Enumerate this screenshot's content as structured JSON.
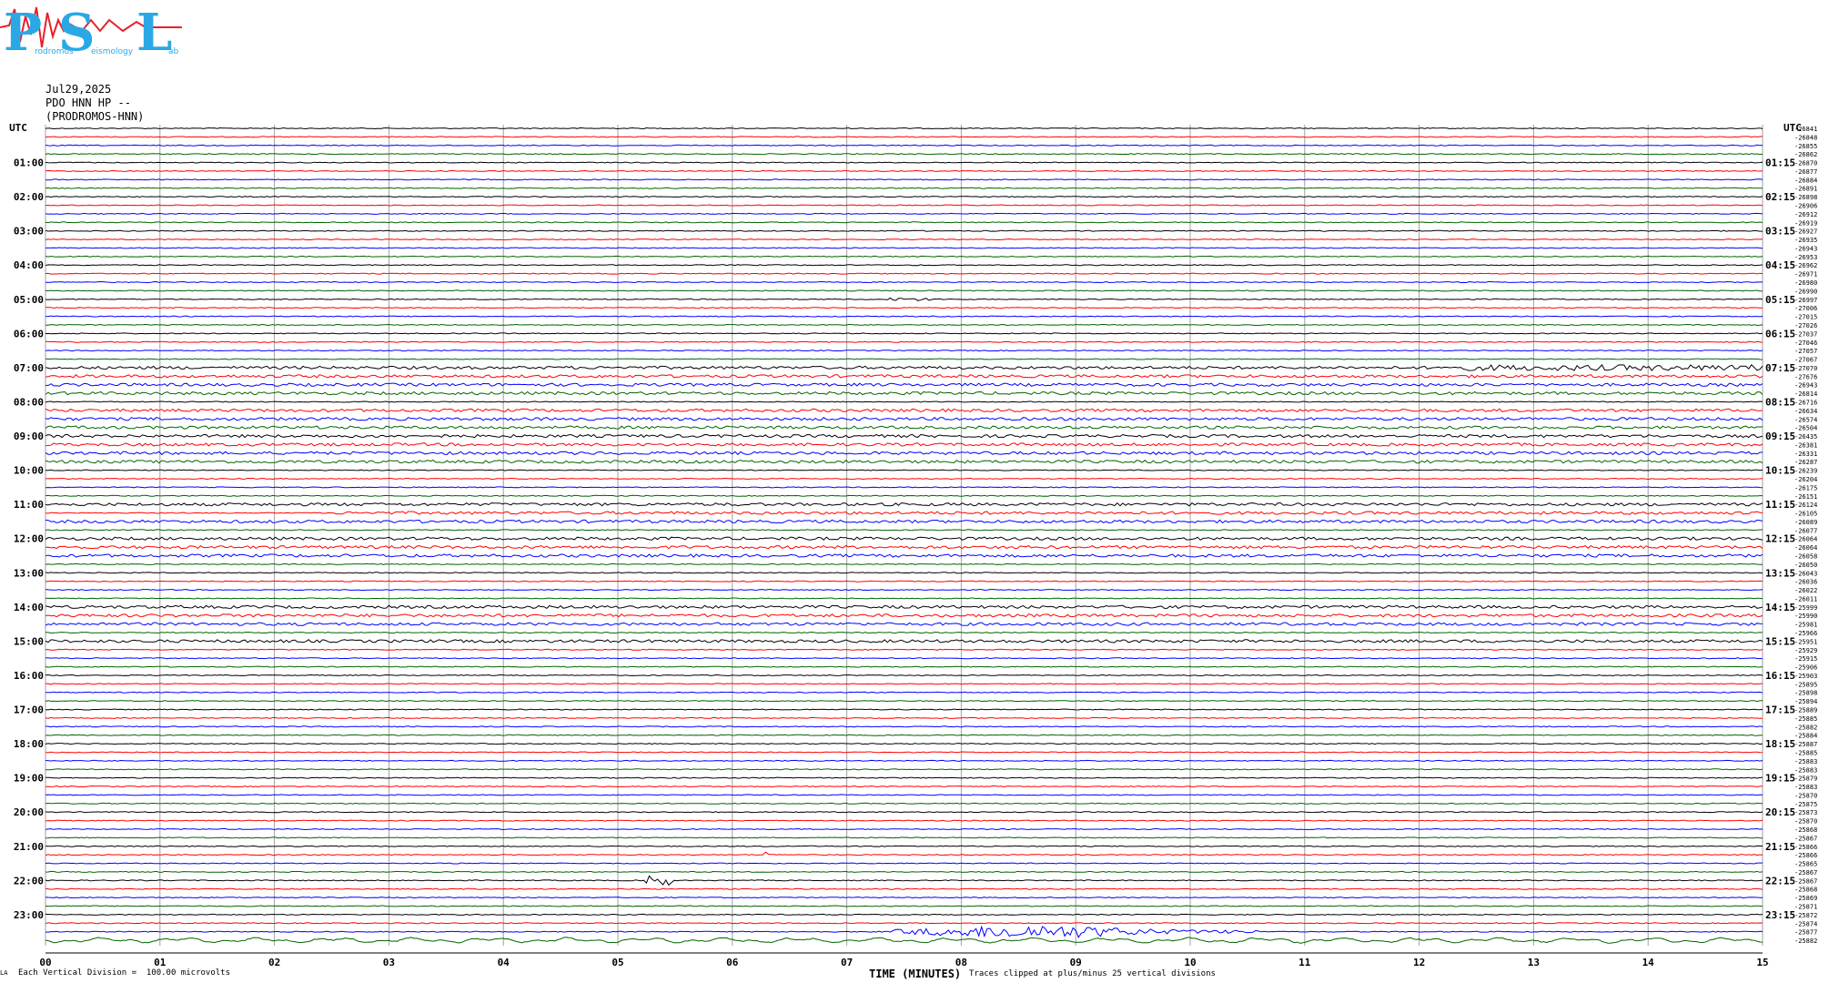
{
  "logo": {
    "letters": [
      "P",
      "S",
      "L"
    ],
    "words": [
      "rodromos",
      "eismology",
      "ab"
    ],
    "colors": {
      "text": "#2aa8e6",
      "trace": "#e8202a"
    }
  },
  "header": {
    "date": "Jul29,2025",
    "station": "PDO HNN HP --",
    "name": "(PRODROMOS-HNN)"
  },
  "axis_labels": {
    "left_corner": "UTC",
    "right_corner": "UTC",
    "x_title": "TIME (MINUTES)"
  },
  "footer": {
    "corner_mark": "LA",
    "division_note": "Each Vertical Division =  100.00 microvolts",
    "clip_note": "Traces clipped at plus/minus 25 vertical divisions"
  },
  "chart_data": {
    "type": "line",
    "title": "Jul29,2025",
    "xlabel": "TIME (MINUTES)",
    "ylabel": "UTC",
    "xlim": [
      0,
      15
    ],
    "x_ticks": [
      "00",
      "01",
      "02",
      "03",
      "04",
      "05",
      "06",
      "07",
      "08",
      "09",
      "10",
      "11",
      "12",
      "13",
      "14",
      "15"
    ],
    "left_hour_labels": [
      "01:00",
      "02:00",
      "03:00",
      "04:00",
      "05:00",
      "06:00",
      "07:00",
      "08:00",
      "09:00",
      "10:00",
      "11:00",
      "12:00",
      "13:00",
      "14:00",
      "15:00",
      "16:00",
      "17:00",
      "18:00",
      "19:00",
      "20:00",
      "21:00",
      "22:00",
      "23:00"
    ],
    "right_hour_labels": [
      "01:15",
      "02:15",
      "03:15",
      "04:15",
      "05:15",
      "06:15",
      "07:15",
      "08:15",
      "09:15",
      "10:15",
      "11:15",
      "12:15",
      "13:15",
      "14:15",
      "15:15",
      "16:15",
      "17:15",
      "18:15",
      "19:15",
      "20:15",
      "21:15",
      "22:15",
      "23:15"
    ],
    "trace_colors": [
      "#000000",
      "#ff0000",
      "#0000ff",
      "#006400"
    ],
    "grid": true,
    "grid_color": "#a0a0a0",
    "minutes_per_line": 15,
    "lines_per_hour": 4,
    "trace_count": 96,
    "line_values": [
      "-26841",
      "-26848",
      "-26855",
      "-26862",
      "-26870",
      "-26877",
      "-26884",
      "-26891",
      "-26898",
      "-26906",
      "-26912",
      "-26919",
      "-26927",
      "-26935",
      "-26943",
      "-26953",
      "-26962",
      "-26971",
      "-26980",
      "-26990",
      "-26997",
      "-27006",
      "-27015",
      "-27026",
      "-27037",
      "-27046",
      "-27057",
      "-27067",
      "-27070",
      "-27676",
      "-26943",
      "-26814",
      "-26716",
      "-26634",
      "-26574",
      "-26504",
      "-26435",
      "-26381",
      "-26331",
      "-26287",
      "-26239",
      "-26204",
      "-26175",
      "-26151",
      "-26124",
      "-26105",
      "-26089",
      "-26077",
      "-26064",
      "-26064",
      "-26058",
      "-26050",
      "-26043",
      "-26036",
      "-26022",
      "-26011",
      "-25999",
      "-25990",
      "-25981",
      "-25966",
      "-25951",
      "-25929",
      "-25915",
      "-25906",
      "-25903",
      "-25895",
      "-25898",
      "-25894",
      "-25889",
      "-25885",
      "-25882",
      "-25884",
      "-25887",
      "-25885",
      "-25883",
      "-25883",
      "-25879",
      "-25883",
      "-25870",
      "-25875",
      "-25873",
      "-25870",
      "-25868",
      "-25867",
      "-25866",
      "-25866",
      "-25865",
      "-25867",
      "-25867",
      "-25868",
      "-25869",
      "-25871",
      "-25872",
      "-25874",
      "-25877",
      "-25882"
    ],
    "events": [
      {
        "line": 20,
        "start_minute": 7.35,
        "end_minute": 7.8,
        "level": "noisy"
      },
      {
        "line": 28,
        "start_minute": 0,
        "end_minute": 15,
        "level": "noisy"
      },
      {
        "line": 29,
        "start_minute": 0,
        "end_minute": 15,
        "level": "noisy"
      },
      {
        "line": 30,
        "start_minute": 0,
        "end_minute": 15,
        "level": "noisy"
      },
      {
        "line": 28,
        "start_minute": 12.3,
        "end_minute": 15,
        "level": "strong"
      },
      {
        "line": 31,
        "start_minute": 0,
        "end_minute": 15,
        "level": "noisy"
      },
      {
        "line": 33,
        "start_minute": 0,
        "end_minute": 15,
        "level": "noisy"
      },
      {
        "line": 34,
        "start_minute": 0,
        "end_minute": 15,
        "level": "noisy"
      },
      {
        "line": 35,
        "start_minute": 0,
        "end_minute": 15,
        "level": "noisy"
      },
      {
        "line": 36,
        "start_minute": 0,
        "end_minute": 15,
        "level": "noisy"
      },
      {
        "line": 37,
        "start_minute": 0,
        "end_minute": 15,
        "level": "noisy"
      },
      {
        "line": 38,
        "start_minute": 0,
        "end_minute": 15,
        "level": "noisy"
      },
      {
        "line": 39,
        "start_minute": 0,
        "end_minute": 15,
        "level": "noisy"
      },
      {
        "line": 44,
        "start_minute": 0,
        "end_minute": 15,
        "level": "noisy"
      },
      {
        "line": 45,
        "start_minute": 2.5,
        "end_minute": 15,
        "level": "noisy"
      },
      {
        "line": 46,
        "start_minute": 0,
        "end_minute": 15,
        "level": "noisy"
      },
      {
        "line": 48,
        "start_minute": 0,
        "end_minute": 15,
        "level": "noisy"
      },
      {
        "line": 49,
        "start_minute": 0,
        "end_minute": 15,
        "level": "noisy"
      },
      {
        "line": 50,
        "start_minute": 0,
        "end_minute": 15,
        "level": "noisy"
      },
      {
        "line": 56,
        "start_minute": 0,
        "end_minute": 15,
        "level": "noisy"
      },
      {
        "line": 57,
        "start_minute": 0,
        "end_minute": 15,
        "level": "noisy"
      },
      {
        "line": 58,
        "start_minute": 0,
        "end_minute": 15,
        "level": "noisy"
      },
      {
        "line": 60,
        "start_minute": 0,
        "end_minute": 15,
        "level": "noisy"
      },
      {
        "line": 85,
        "start_minute": 6.3,
        "end_minute": 6.3,
        "level": "spike"
      },
      {
        "line": 88,
        "start_minute": 5.3,
        "end_minute": 5.5,
        "level": "quake"
      },
      {
        "line": 94,
        "start_minute": 7.4,
        "end_minute": 10.6,
        "level": "strong"
      },
      {
        "line": 95,
        "start_minute": 0,
        "end_minute": 15,
        "level": "wave"
      }
    ]
  }
}
